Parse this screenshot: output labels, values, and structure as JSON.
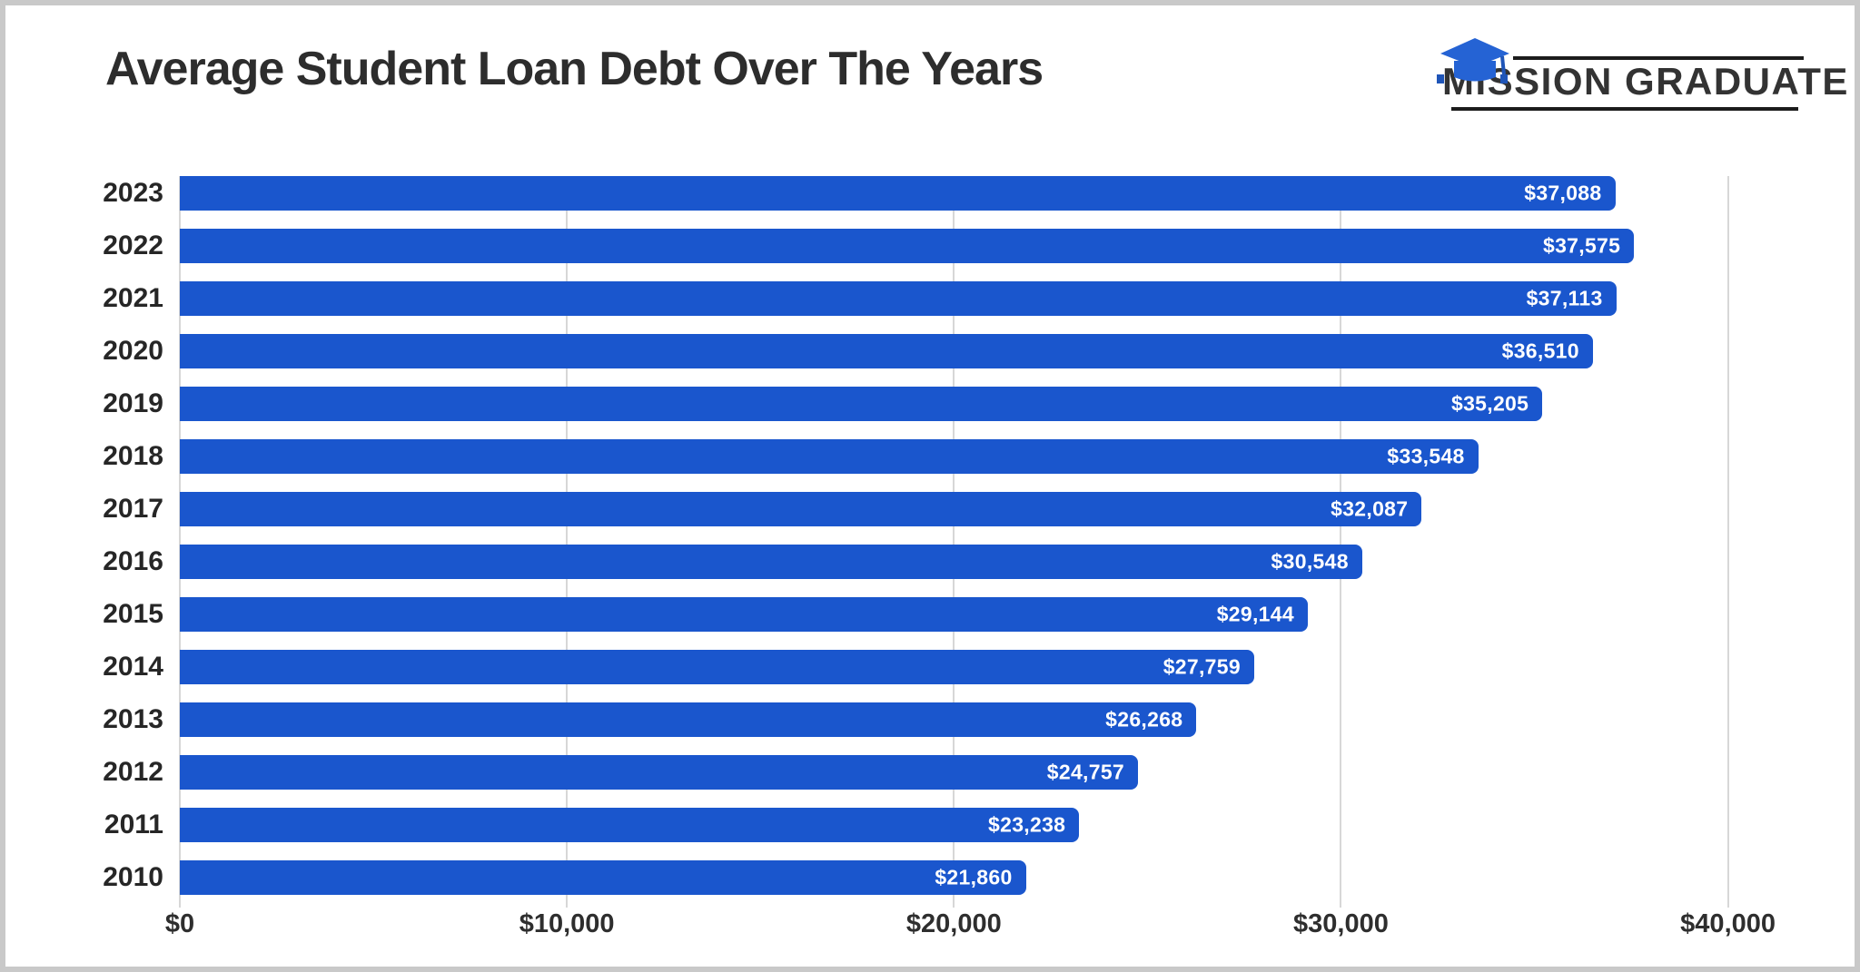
{
  "header": {
    "title": "Average Student Loan Debt Over The Years",
    "logo": {
      "text": "MISSION GRADUATE",
      "icon": "graduation-cap-icon",
      "cap_color": "#2563d4",
      "tassel_color": "#1f55b8",
      "line_color": "#1c1c1c",
      "text_color": "#333333"
    }
  },
  "chart_data": {
    "type": "bar",
    "orientation": "horizontal",
    "title": "Average Student Loan Debt Over The Years",
    "categories": [
      "2023",
      "2022",
      "2021",
      "2020",
      "2019",
      "2018",
      "2017",
      "2016",
      "2015",
      "2014",
      "2013",
      "2012",
      "2011",
      "2010"
    ],
    "values": [
      37088,
      37575,
      37113,
      36510,
      35205,
      33548,
      32087,
      30548,
      29144,
      27759,
      26268,
      24757,
      23238,
      21860
    ],
    "value_labels": [
      "$37,088",
      "$37,575",
      "$37,113",
      "$36,510",
      "$35,205",
      "$33,548",
      "$32,087",
      "$30,548",
      "$29,144",
      "$27,759",
      "$26,268",
      "$24,757",
      "$23,238",
      "$21,860"
    ],
    "x_ticks": [
      {
        "label": "$0",
        "value": 0
      },
      {
        "label": "$10,000",
        "value": 10000
      },
      {
        "label": "$20,000",
        "value": 20000
      },
      {
        "label": "$30,000",
        "value": 30000
      },
      {
        "label": "$40,000",
        "value": 40000
      }
    ],
    "xlim": [
      0,
      40000
    ],
    "plot_max": 41300,
    "grid": true,
    "bar_color": "#1a56cd",
    "gridline_color": "#d7d7d7",
    "value_label_color": "#ffffff",
    "legend": "none"
  }
}
